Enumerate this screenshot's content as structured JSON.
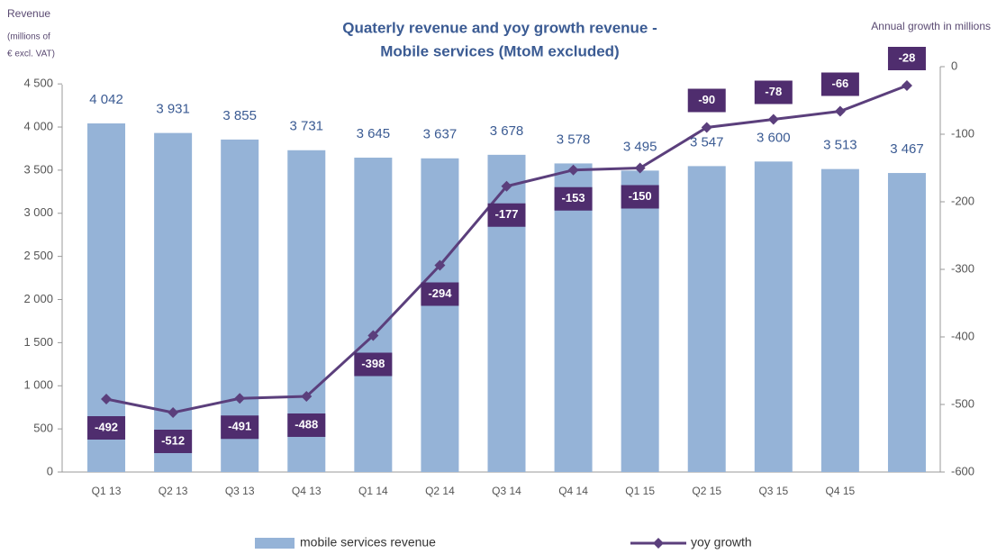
{
  "chart_data": {
    "type": "bar_line",
    "title": [
      "Quaterly revenue and yoy growth revenue -",
      "Mobile services (MtoM excluded)"
    ],
    "y_label": [
      "Revenue",
      "(millions of",
      "€ excl. VAT)"
    ],
    "y2_label": "Annual growth in millions",
    "categories": [
      "Q1 13",
      "Q2 13",
      "Q3 13",
      "Q4 13",
      "Q1 14",
      "Q2 14",
      "Q3 14",
      "Q4 14",
      "Q1 15",
      "Q2 15",
      "Q3 15",
      "Q4 15",
      null
    ],
    "series": [
      {
        "name": "mobile services revenue",
        "type": "bar",
        "color": "#95b3d7",
        "values": [
          4042,
          3931,
          3855,
          3731,
          3645,
          3637,
          3678,
          3578,
          3495,
          3547,
          3600,
          3513,
          3467
        ],
        "value_labels": [
          "4 042",
          "3 931",
          "3 855",
          "3 731",
          "3 645",
          "3 637",
          "3 678",
          "3 578",
          "3 495",
          "3 547",
          "3 600",
          "3 513",
          "3 467"
        ]
      },
      {
        "name": "yoy growth",
        "type": "line",
        "axis": "y2",
        "color": "#5b3f7c",
        "values": [
          -492,
          -512,
          -491,
          -488,
          -398,
          -294,
          -177,
          -153,
          -150,
          -90,
          -78,
          -66,
          -28
        ]
      }
    ],
    "ylim": [
      0,
      4700
    ],
    "yticks": [
      0,
      500,
      {
        "value": 1000,
        "label": "1 000"
      },
      {
        "value": 1500,
        "label": "1 500"
      },
      {
        "value": 2000,
        "label": "2 000"
      },
      {
        "value": 2500,
        "label": "2 500"
      },
      {
        "value": 3000,
        "label": "3 000"
      },
      {
        "value": 3500,
        "label": "3 500"
      },
      {
        "value": 4000,
        "label": "4 000"
      },
      {
        "value": 4500,
        "label": "4 500"
      }
    ],
    "y2lim": [
      -600,
      0
    ],
    "y2ticks": [
      0,
      -100,
      -200,
      -300,
      -400,
      -500,
      -600
    ],
    "legend": "bottom"
  }
}
